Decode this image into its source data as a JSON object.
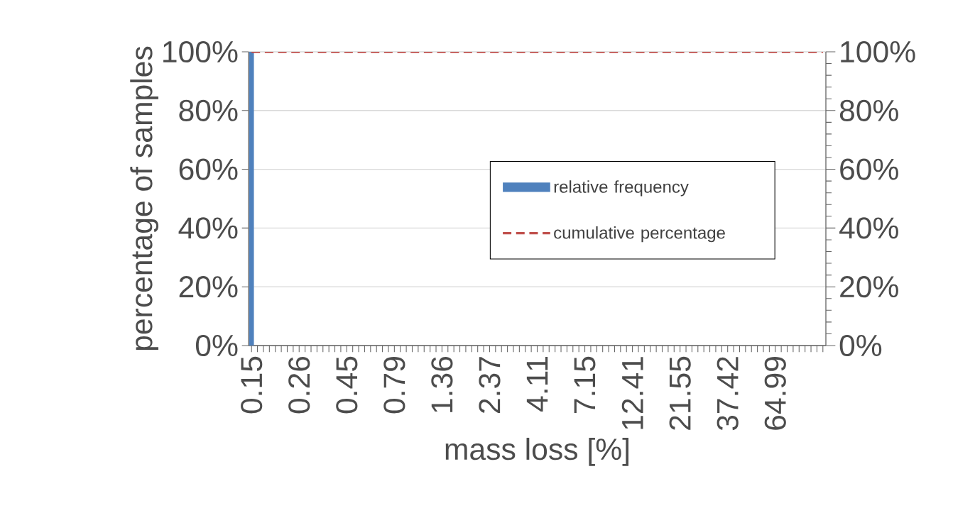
{
  "chart_data": {
    "type": "bar",
    "xlabel": "mass loss [%]",
    "ylabel": "percentage of samples",
    "categories": [
      "0.15",
      null,
      null,
      null,
      null,
      null,
      null,
      null,
      "0.26",
      null,
      null,
      null,
      null,
      null,
      null,
      null,
      "0.45",
      null,
      null,
      null,
      null,
      null,
      null,
      null,
      "0.79",
      null,
      null,
      null,
      null,
      null,
      null,
      null,
      "1.36",
      null,
      null,
      null,
      null,
      null,
      null,
      null,
      "2.37",
      null,
      null,
      null,
      null,
      null,
      null,
      null,
      "4.11",
      null,
      null,
      null,
      null,
      null,
      null,
      null,
      "7.15",
      null,
      null,
      null,
      null,
      null,
      null,
      null,
      "12.41",
      null,
      null,
      null,
      null,
      null,
      null,
      null,
      "21.55",
      null,
      null,
      null,
      null,
      null,
      null,
      null,
      "37.42",
      null,
      null,
      null,
      null,
      null,
      null,
      null,
      "64.99",
      null,
      null,
      null,
      null,
      null,
      null,
      null,
      null
    ],
    "series": [
      {
        "name": "relative frequency",
        "color": "#4f81bd",
        "values": [
          100,
          0,
          0,
          0,
          0,
          0,
          0,
          0,
          0,
          0,
          0,
          0,
          0,
          0,
          0,
          0,
          0,
          0,
          0,
          0,
          0,
          0,
          0,
          0,
          0,
          0,
          0,
          0,
          0,
          0,
          0,
          0,
          0,
          0,
          0,
          0,
          0,
          0,
          0,
          0,
          0,
          0,
          0,
          0,
          0,
          0,
          0,
          0,
          0,
          0,
          0,
          0,
          0,
          0,
          0,
          0,
          0,
          0,
          0,
          0,
          0,
          0,
          0,
          0,
          0,
          0,
          0,
          0,
          0,
          0,
          0,
          0,
          0,
          0,
          0,
          0,
          0,
          0,
          0,
          0,
          0,
          0,
          0,
          0,
          0,
          0,
          0,
          0,
          0,
          0,
          0,
          0,
          0,
          0,
          0,
          0,
          0
        ]
      },
      {
        "name": "cumulative percentage",
        "type": "line",
        "color": "#c0504d",
        "line_style": "dashed",
        "axis": "y2",
        "values": [
          100,
          100,
          100,
          100,
          100,
          100,
          100,
          100,
          100,
          100,
          100,
          100,
          100,
          100,
          100,
          100,
          100,
          100,
          100,
          100,
          100,
          100,
          100,
          100,
          100,
          100,
          100,
          100,
          100,
          100,
          100,
          100,
          100,
          100,
          100,
          100,
          100,
          100,
          100,
          100,
          100,
          100,
          100,
          100,
          100,
          100,
          100,
          100,
          100,
          100,
          100,
          100,
          100,
          100,
          100,
          100,
          100,
          100,
          100,
          100,
          100,
          100,
          100,
          100,
          100,
          100,
          100,
          100,
          100,
          100,
          100,
          100,
          100,
          100,
          100,
          100,
          100,
          100,
          100,
          100,
          100,
          100,
          100,
          100,
          100,
          100,
          100,
          100,
          100,
          100,
          100,
          100,
          100,
          100,
          100,
          100,
          100
        ]
      }
    ],
    "ylim": [
      0,
      100
    ],
    "yticks": [
      {
        "value": 0,
        "label": "0%"
      },
      {
        "value": 20,
        "label": "20%"
      },
      {
        "value": 40,
        "label": "40%"
      },
      {
        "value": 60,
        "label": "60%"
      },
      {
        "value": 80,
        "label": "80%"
      },
      {
        "value": 100,
        "label": "100%"
      }
    ],
    "y2lim": [
      0,
      100
    ],
    "y2ticks": [
      {
        "value": 0,
        "label": "0%"
      },
      {
        "value": 20,
        "label": "20%"
      },
      {
        "value": 40,
        "label": "40%"
      },
      {
        "value": 60,
        "label": "60%"
      },
      {
        "value": 80,
        "label": "80%"
      },
      {
        "value": 100,
        "label": "100%"
      }
    ],
    "grid": "y",
    "legend": "right"
  }
}
